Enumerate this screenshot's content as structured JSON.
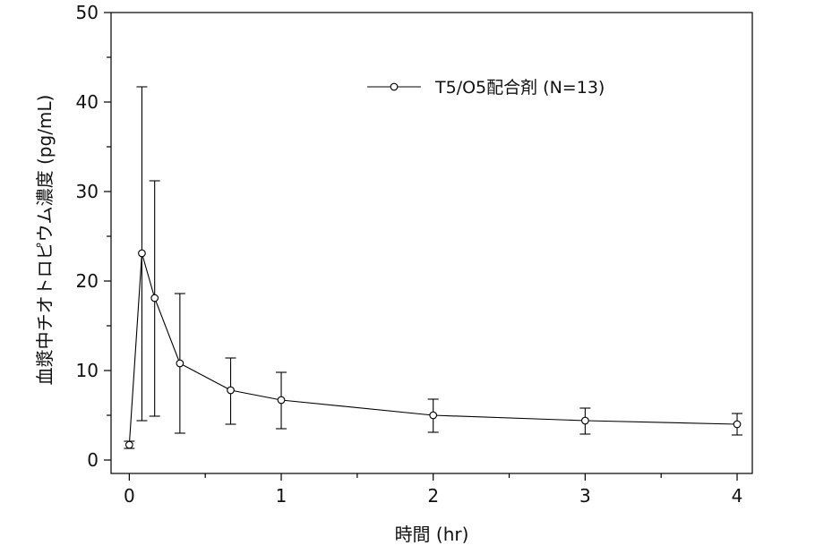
{
  "chart_data": {
    "type": "line",
    "xlabel": "時間 (hr)",
    "ylabel": "血漿中チオトロピウム濃度 (pg/mL)",
    "xlim": [
      -0.12,
      4.1
    ],
    "ylim": [
      -1.5,
      50
    ],
    "x_ticks": [
      0,
      1,
      2,
      3,
      4
    ],
    "x_minor_ticks": [
      0.5,
      1.5,
      2.5,
      3.5
    ],
    "y_ticks": [
      0,
      10,
      20,
      30,
      40,
      50
    ],
    "y_minor_ticks": [
      5,
      15,
      25,
      35,
      45
    ],
    "grid": false,
    "legend_position": "top-right",
    "series": [
      {
        "name": "T5/O5配合剤 (N=13)",
        "marker": "open-circle",
        "color": "#000000",
        "x": [
          0,
          0.083,
          0.167,
          0.333,
          0.667,
          1,
          2,
          3,
          4
        ],
        "y": [
          1.7,
          23.1,
          18.1,
          10.8,
          7.8,
          6.7,
          5.0,
          4.4,
          4.0
        ],
        "error_upper": [
          2.1,
          41.7,
          31.2,
          18.6,
          11.4,
          9.8,
          6.8,
          5.8,
          5.2
        ],
        "error_lower": [
          1.3,
          4.4,
          4.9,
          3.0,
          4.0,
          3.5,
          3.1,
          2.9,
          2.8
        ]
      }
    ]
  }
}
